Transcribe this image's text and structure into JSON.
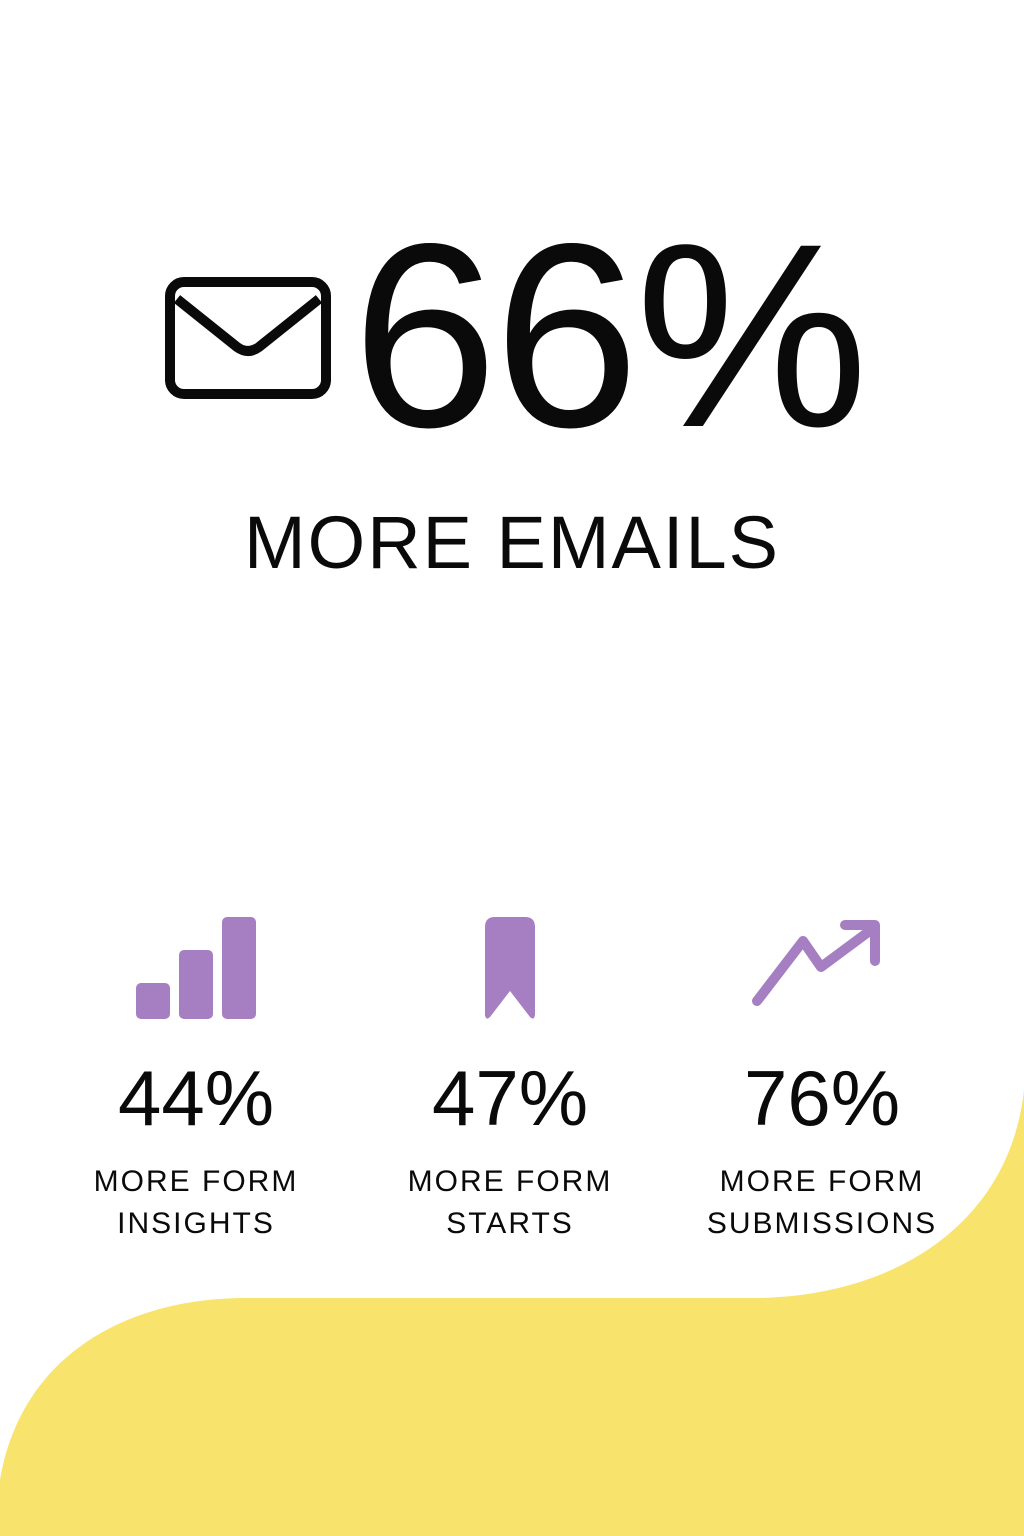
{
  "colors": {
    "accent": "#a67fc2",
    "highlight": "#f8e36c",
    "text": "#0a0a0a"
  },
  "hero": {
    "icon": "envelope-icon",
    "value": "66%",
    "label": "MORE EMAILS"
  },
  "stats": [
    {
      "icon": "bar-chart-icon",
      "value": "44%",
      "label_line1": "MORE FORM",
      "label_line2": "INSIGHTS"
    },
    {
      "icon": "bookmark-icon",
      "value": "47%",
      "label_line1": "MORE FORM",
      "label_line2": "STARTS"
    },
    {
      "icon": "trending-up-icon",
      "value": "76%",
      "label_line1": "MORE FORM",
      "label_line2": "SUBMISSIONS"
    }
  ]
}
